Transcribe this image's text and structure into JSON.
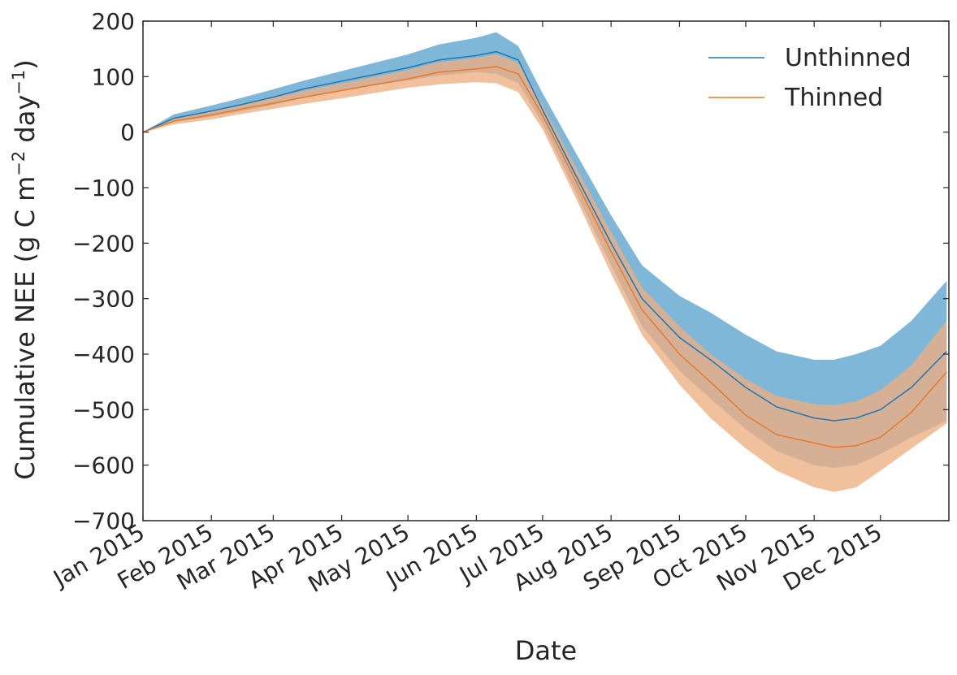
{
  "chart_data": {
    "type": "area",
    "xlabel": "Date",
    "ylabel": "Cumulative NEE (g C m",
    "ylabel_sup1": "−2",
    "ylabel_mid": " day",
    "ylabel_sup2": "−1",
    "ylabel_end": ")",
    "ylim": [
      -700,
      200
    ],
    "yticks": [
      200,
      100,
      0,
      -100,
      -200,
      -300,
      -400,
      -500,
      -600,
      -700
    ],
    "ytick_labels": [
      "200",
      "100",
      "0",
      "−100",
      "−200",
      "−300",
      "−400",
      "−500",
      "−600",
      "−700"
    ],
    "xlim": [
      "2015-01-01",
      "2015-12-31"
    ],
    "xticks": [
      "2015-01-01",
      "2015-02-01",
      "2015-03-01",
      "2015-04-01",
      "2015-05-01",
      "2015-06-01",
      "2015-07-01",
      "2015-08-01",
      "2015-09-01",
      "2015-10-01",
      "2015-11-01",
      "2015-12-01"
    ],
    "xtick_labels": [
      "Jan 2015",
      "Feb 2015",
      "Mar 2015",
      "Apr 2015",
      "May 2015",
      "Jun 2015",
      "Jul 2015",
      "Aug 2015",
      "Sep 2015",
      "Oct 2015",
      "Nov 2015",
      "Dec 2015"
    ],
    "x": [
      "2015-01-01",
      "2015-01-15",
      "2015-02-01",
      "2015-02-15",
      "2015-03-01",
      "2015-03-15",
      "2015-04-01",
      "2015-04-15",
      "2015-05-01",
      "2015-05-15",
      "2015-06-01",
      "2015-06-10",
      "2015-06-20",
      "2015-07-01",
      "2015-07-15",
      "2015-08-01",
      "2015-08-15",
      "2015-09-01",
      "2015-09-15",
      "2015-10-01",
      "2015-10-15",
      "2015-11-01",
      "2015-11-10",
      "2015-11-20",
      "2015-12-01",
      "2015-12-15",
      "2015-12-31"
    ],
    "grid": false,
    "legend": "top-right",
    "series": [
      {
        "name": "Unthinned",
        "color": "#1f77b4",
        "band_color": "#7fb7d9",
        "values": [
          0,
          25,
          38,
          50,
          63,
          78,
          92,
          103,
          116,
          130,
          138,
          145,
          130,
          40,
          -70,
          -200,
          -300,
          -370,
          -410,
          -460,
          -495,
          -515,
          -520,
          -515,
          -500,
          -460,
          -395
        ],
        "upper": [
          0,
          32,
          48,
          62,
          77,
          93,
          110,
          124,
          140,
          158,
          170,
          180,
          155,
          70,
          -30,
          -150,
          -240,
          -295,
          -325,
          -365,
          -395,
          -410,
          -410,
          -400,
          -385,
          -340,
          -268
        ],
        "lower": [
          0,
          18,
          28,
          38,
          49,
          62,
          74,
          84,
          93,
          102,
          108,
          105,
          88,
          15,
          -100,
          -240,
          -350,
          -430,
          -480,
          -535,
          -575,
          -600,
          -605,
          -600,
          -580,
          -550,
          -520
        ]
      },
      {
        "name": "Thinned",
        "color": "#e8792a",
        "band_color": "#edae80",
        "values": [
          0,
          20,
          31,
          42,
          52,
          63,
          75,
          85,
          96,
          108,
          114,
          118,
          105,
          30,
          -80,
          -215,
          -320,
          -400,
          -450,
          -510,
          -545,
          -560,
          -568,
          -565,
          -550,
          -505,
          -432
        ],
        "upper": [
          0,
          26,
          38,
          50,
          62,
          75,
          88,
          99,
          112,
          126,
          134,
          140,
          125,
          48,
          -55,
          -180,
          -280,
          -350,
          -400,
          -445,
          -475,
          -490,
          -492,
          -485,
          -465,
          -420,
          -340
        ],
        "lower": [
          0,
          14,
          23,
          33,
          42,
          51,
          61,
          70,
          80,
          86,
          90,
          88,
          72,
          5,
          -110,
          -255,
          -365,
          -455,
          -515,
          -570,
          -610,
          -640,
          -648,
          -640,
          -610,
          -570,
          -525
        ]
      }
    ]
  }
}
